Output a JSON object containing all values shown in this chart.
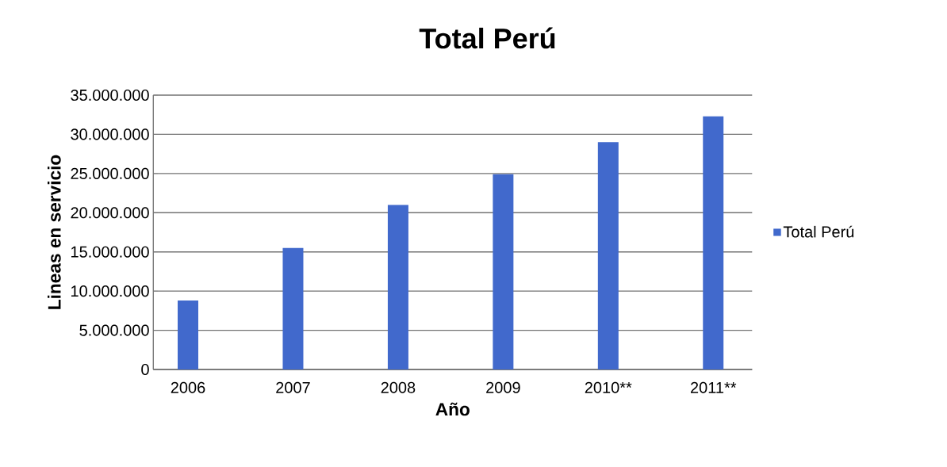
{
  "chart_data": {
    "type": "bar",
    "title": "Total Perú",
    "xlabel": "Año",
    "ylabel": "Lineas en servicio",
    "categories": [
      "2006",
      "2007",
      "2008",
      "2009",
      "2010**",
      "2011**"
    ],
    "series": [
      {
        "name": "Total Perú",
        "color": "#4169cc",
        "values": [
          8800000,
          15500000,
          21000000,
          24900000,
          29000000,
          32300000
        ]
      }
    ],
    "ylim": [
      0,
      35000000
    ],
    "yticks": [
      {
        "value": 0,
        "label": "0"
      },
      {
        "value": 5000000,
        "label": "5.000.000"
      },
      {
        "value": 10000000,
        "label": "10.000.000"
      },
      {
        "value": 15000000,
        "label": "15.000.000"
      },
      {
        "value": 20000000,
        "label": "20.000.000"
      },
      {
        "value": 25000000,
        "label": "25.000.000"
      },
      {
        "value": 30000000,
        "label": "30.000.000"
      },
      {
        "value": 35000000,
        "label": "35.000.000"
      }
    ],
    "grid": "y",
    "legend": "right"
  }
}
